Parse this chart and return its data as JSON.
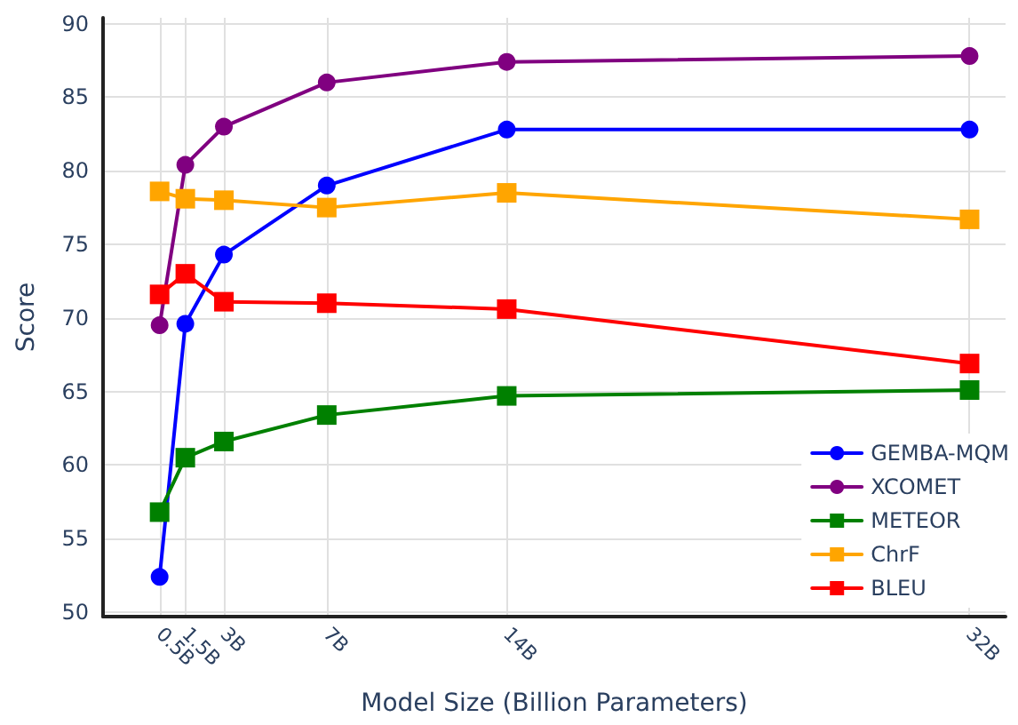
{
  "chart_data": {
    "type": "line",
    "xlabel": "Model Size (Billion Parameters)",
    "ylabel": "Score",
    "x": [
      0.5,
      1.5,
      3,
      7,
      14,
      32
    ],
    "xlim": [
      -1.7,
      33.4
    ],
    "xticks": [
      {
        "value": 0.5,
        "label": "0.5B"
      },
      {
        "value": 1.5,
        "label": "1.5B"
      },
      {
        "value": 3,
        "label": "3B"
      },
      {
        "value": 7,
        "label": "7B"
      },
      {
        "value": 14,
        "label": "14B"
      },
      {
        "value": 32,
        "label": "32B"
      }
    ],
    "ylim": [
      49.7,
      90.4
    ],
    "yticks": [
      50,
      55,
      60,
      65,
      70,
      75,
      80,
      85,
      90
    ],
    "grid": true,
    "legend": "bottom right",
    "line_style": "solid",
    "series": [
      {
        "name": "GEMBA-MQM",
        "color": "#0000ff",
        "marker": "circle",
        "values": [
          52.4,
          69.6,
          74.3,
          79.0,
          82.8,
          82.8
        ]
      },
      {
        "name": "XCOMET",
        "color": "#800080",
        "marker": "circle",
        "values": [
          69.5,
          80.4,
          83.0,
          86.0,
          87.4,
          87.8
        ]
      },
      {
        "name": "METEOR",
        "color": "#008000",
        "marker": "square",
        "values": [
          56.8,
          60.5,
          61.6,
          63.4,
          64.7,
          65.1
        ]
      },
      {
        "name": "ChrF",
        "color": "#ffa500",
        "marker": "square",
        "values": [
          78.6,
          78.1,
          78.0,
          77.5,
          78.5,
          76.7
        ]
      },
      {
        "name": "BLEU",
        "color": "#ff0000",
        "marker": "square",
        "values": [
          71.6,
          73.0,
          71.1,
          71.0,
          70.6,
          66.9
        ]
      }
    ]
  }
}
